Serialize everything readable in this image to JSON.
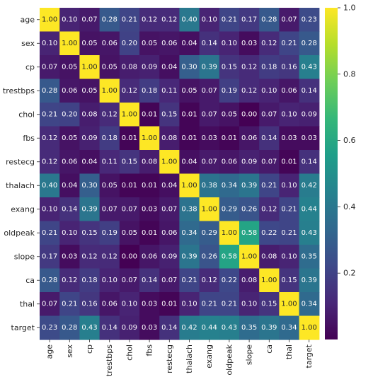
{
  "chart_data": {
    "type": "heatmap",
    "title": "",
    "xlabel": "",
    "ylabel": "",
    "labels": [
      "age",
      "sex",
      "cp",
      "trestbps",
      "chol",
      "fbs",
      "restecg",
      "thalach",
      "exang",
      "oldpeak",
      "slope",
      "ca",
      "thal",
      "target"
    ],
    "matrix": [
      [
        1.0,
        0.1,
        0.07,
        0.28,
        0.21,
        0.12,
        0.12,
        0.4,
        0.1,
        0.21,
        0.17,
        0.28,
        0.07,
        0.23
      ],
      [
        0.1,
        1.0,
        0.05,
        0.06,
        0.2,
        0.05,
        0.06,
        0.04,
        0.14,
        0.1,
        0.03,
        0.12,
        0.21,
        0.28
      ],
      [
        0.07,
        0.05,
        1.0,
        0.05,
        0.08,
        0.09,
        0.04,
        0.3,
        0.39,
        0.15,
        0.12,
        0.18,
        0.16,
        0.43
      ],
      [
        0.28,
        0.06,
        0.05,
        1.0,
        0.12,
        0.18,
        0.11,
        0.05,
        0.07,
        0.19,
        0.12,
        0.1,
        0.06,
        0.14
      ],
      [
        0.21,
        0.2,
        0.08,
        0.12,
        1.0,
        0.01,
        0.15,
        0.01,
        0.07,
        0.05,
        0.0,
        0.07,
        0.1,
        0.09
      ],
      [
        0.12,
        0.05,
        0.09,
        0.18,
        0.01,
        1.0,
        0.08,
        0.01,
        0.03,
        0.01,
        0.06,
        0.14,
        0.03,
        0.03
      ],
      [
        0.12,
        0.06,
        0.04,
        0.11,
        0.15,
        0.08,
        1.0,
        0.04,
        0.07,
        0.06,
        0.09,
        0.07,
        0.01,
        0.14
      ],
      [
        0.4,
        0.04,
        0.3,
        0.05,
        0.01,
        0.01,
        0.04,
        1.0,
        0.38,
        0.34,
        0.39,
        0.21,
        0.1,
        0.42
      ],
      [
        0.1,
        0.14,
        0.39,
        0.07,
        0.07,
        0.03,
        0.07,
        0.38,
        1.0,
        0.29,
        0.26,
        0.12,
        0.21,
        0.44
      ],
      [
        0.21,
        0.1,
        0.15,
        0.19,
        0.05,
        0.01,
        0.06,
        0.34,
        0.29,
        1.0,
        0.58,
        0.22,
        0.21,
        0.43
      ],
      [
        0.17,
        0.03,
        0.12,
        0.12,
        0.0,
        0.06,
        0.09,
        0.39,
        0.26,
        0.58,
        1.0,
        0.08,
        0.1,
        0.35
      ],
      [
        0.28,
        0.12,
        0.18,
        0.1,
        0.07,
        0.14,
        0.07,
        0.21,
        0.12,
        0.22,
        0.08,
        1.0,
        0.15,
        0.39
      ],
      [
        0.07,
        0.21,
        0.16,
        0.06,
        0.1,
        0.03,
        0.01,
        0.1,
        0.21,
        0.21,
        0.1,
        0.15,
        1.0,
        0.34
      ],
      [
        0.23,
        0.28,
        0.43,
        0.14,
        0.09,
        0.03,
        0.14,
        0.42,
        0.44,
        0.43,
        0.35,
        0.39,
        0.34,
        1.0
      ]
    ],
    "value_format": "0.00",
    "colormap": "viridis",
    "colormap_stops": [
      "#440154",
      "#482878",
      "#3e4989",
      "#31688e",
      "#26828e",
      "#1f9e89",
      "#35b779",
      "#6ece58",
      "#b5de2b",
      "#fde725"
    ],
    "colorbar": {
      "range": [
        0.0,
        1.0
      ],
      "ticks": [
        0.2,
        0.4,
        0.6,
        0.8,
        1.0
      ],
      "tick_labels": [
        "0.2",
        "0.4",
        "0.6",
        "0.8",
        "1.0"
      ]
    },
    "text_color_light": "#ffffff",
    "text_color_dark": "#262626",
    "axis_text_color": "#262626",
    "grid": false,
    "legend": "right"
  }
}
